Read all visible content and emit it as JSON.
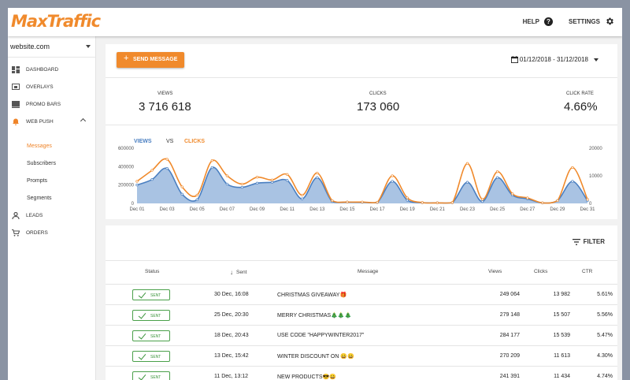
{
  "app": {
    "logo": "MaxTraffic"
  },
  "topnav": {
    "help": "HELP",
    "settings": "SETTINGS"
  },
  "sidebar": {
    "website": "website.com",
    "items": [
      {
        "label": "DASHBOARD",
        "icon": "dashboard-icon"
      },
      {
        "label": "OVERLAYS",
        "icon": "overlays-icon"
      },
      {
        "label": "PROMO BARS",
        "icon": "promo-bars-icon"
      },
      {
        "label": "WEB PUSH",
        "icon": "bell-icon"
      },
      {
        "label": "LEADS",
        "icon": "person-icon"
      },
      {
        "label": "ORDERS",
        "icon": "cart-icon"
      }
    ],
    "subitems": [
      "Messages",
      "Subscribers",
      "Prompts",
      "Segments"
    ]
  },
  "toolbar": {
    "send_label": "SEND MESSAGE",
    "date_range": "01/12/2018 - 31/12/2018"
  },
  "kpis": {
    "views": {
      "label": "VIEWS",
      "value": "3 716 618"
    },
    "clicks": {
      "label": "CLICKS",
      "value": "173 060"
    },
    "rate": {
      "label": "CLICK RATE",
      "value": "4.66%"
    }
  },
  "legend": {
    "views": "VIEWS",
    "vs": "VS",
    "clicks": "CLICKS"
  },
  "chart_data": {
    "type": "area",
    "x": [
      "Dec 01",
      "Dec 02",
      "Dec 03",
      "Dec 04",
      "Dec 05",
      "Dec 06",
      "Dec 07",
      "Dec 08",
      "Dec 09",
      "Dec 10",
      "Dec 11",
      "Dec 12",
      "Dec 13",
      "Dec 14",
      "Dec 15",
      "Dec 16",
      "Dec 17",
      "Dec 18",
      "Dec 19",
      "Dec 20",
      "Dec 21",
      "Dec 22",
      "Dec 23",
      "Dec 24",
      "Dec 25",
      "Dec 26",
      "Dec 27",
      "Dec 28",
      "Dec 29",
      "Dec 30",
      "Dec 31"
    ],
    "x_tick_labels": [
      "Dec 01",
      "Dec 03",
      "Dec 05",
      "Dec 07",
      "Dec 09",
      "Dec 11",
      "Dec 13",
      "Dec 15",
      "Dec 17",
      "Dec 19",
      "Dec 21",
      "Dec 23",
      "Dec 25",
      "Dec 27",
      "Dec 29",
      "Dec 31"
    ],
    "series": [
      {
        "name": "VIEWS",
        "axis": "left",
        "color": "#4a7fc1",
        "values": [
          200000,
          260000,
          380000,
          100000,
          40000,
          390000,
          210000,
          175000,
          220000,
          230000,
          250000,
          50000,
          280000,
          20000,
          15000,
          12000,
          10000,
          240000,
          35000,
          8000,
          6000,
          8000,
          230000,
          20000,
          280000,
          90000,
          50000,
          5000,
          30000,
          240000,
          30000
        ]
      },
      {
        "name": "CLICKS",
        "axis": "right",
        "color": "#f08a2c",
        "values": [
          8000,
          12000,
          16000,
          6000,
          3000,
          15500,
          10000,
          7000,
          9500,
          8500,
          10500,
          3000,
          11000,
          1000,
          500,
          500,
          400,
          10000,
          2000,
          300,
          200,
          300,
          14500,
          1500,
          11500,
          3500,
          2000,
          200,
          1000,
          13000,
          1500
        ]
      }
    ],
    "y_left": {
      "ticks": [
        "600000",
        "400000",
        "200000",
        "0"
      ],
      "lim": [
        0,
        600000
      ]
    },
    "y_right": {
      "ticks": [
        "20000",
        "10000",
        "0"
      ],
      "lim": [
        0,
        20000
      ]
    },
    "grid": false
  },
  "table": {
    "filter_label": "FILTER",
    "columns": {
      "status": "Status",
      "sent": "Sent",
      "message": "Message",
      "views": "Views",
      "clicks": "Clicks",
      "ctr": "CTR"
    },
    "rows": [
      {
        "status": "SENT",
        "sent": "30 Dec, 16:08",
        "message": "CHRISTMAS GIVEAWAY🎁",
        "views": "249 064",
        "clicks": "13 982",
        "ctr": "5.61%"
      },
      {
        "status": "SENT",
        "sent": "25 Dec, 20:30",
        "message": "MERRY CHRISTMAS🎄🎄🎄",
        "views": "279 148",
        "clicks": "15 507",
        "ctr": "5.56%"
      },
      {
        "status": "SENT",
        "sent": "18 Dec, 20:43",
        "message": "USE CODE \"HAPPYWINTER2017\"",
        "views": "284 177",
        "clicks": "15 539",
        "ctr": "5.47%"
      },
      {
        "status": "SENT",
        "sent": "13 Dec, 15:42",
        "message": "WINTER DISCOUNT ON 😀😀",
        "views": "270 209",
        "clicks": "11 613",
        "ctr": "4.30%"
      },
      {
        "status": "SENT",
        "sent": "11 Dec, 13:12",
        "message": "NEW PRODUCTS😎😀",
        "views": "241 391",
        "clicks": "11 434",
        "ctr": "4.74%"
      }
    ]
  }
}
